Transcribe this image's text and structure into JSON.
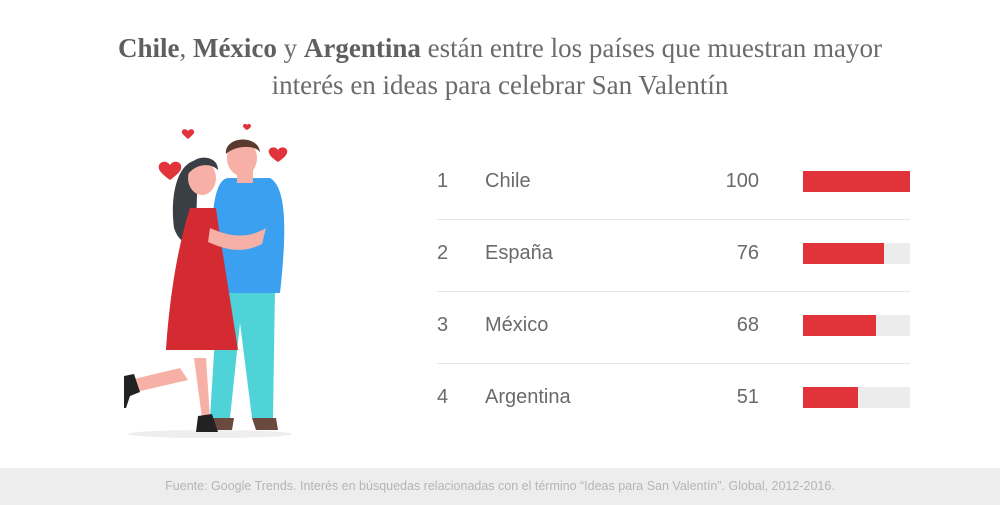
{
  "title": {
    "part1": "Chile",
    "part2": ", ",
    "part3": "México",
    "part4": " y ",
    "part5": "Argentina",
    "part6": " están entre los países que muestran mayor",
    "line2": "interés en ideas para celebrar San Valentín"
  },
  "colors": {
    "bar": "#e0333a",
    "track": "#ececec",
    "footer_bg": "#ededed"
  },
  "chart_data": {
    "type": "bar",
    "orientation": "horizontal",
    "categories": [
      "Chile",
      "España",
      "México",
      "Argentina"
    ],
    "ranks": [
      "1",
      "2",
      "3",
      "4"
    ],
    "values": [
      100,
      76,
      68,
      51
    ],
    "value_labels": [
      "100",
      "76",
      "68",
      "51"
    ],
    "xlim": [
      0,
      100
    ],
    "grid": false
  },
  "footer": "Fuente: Google Trends. Interés en búsquedas relacionadas con el término “Ideas para San Valentín”. Global, 2012-2016."
}
